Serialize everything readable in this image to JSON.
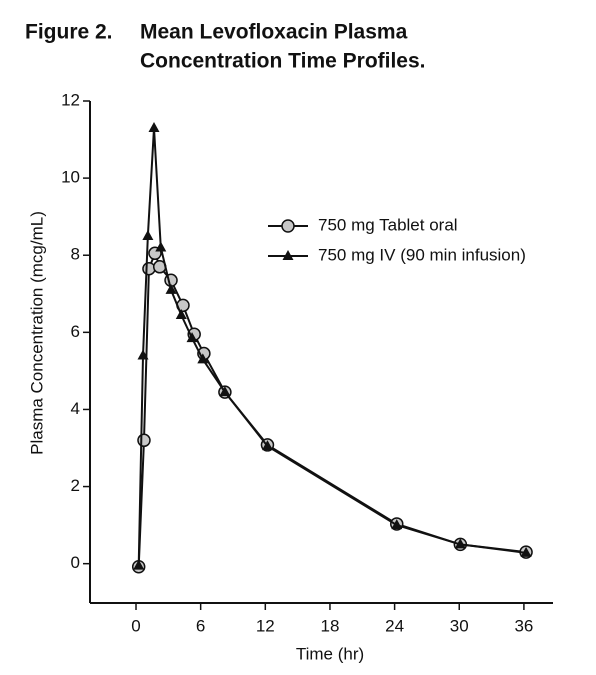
{
  "chart_data": {
    "type": "line",
    "figure_label": "Figure 2.",
    "title_lines": [
      "Mean Levofloxacin Plasma",
      "Concentration Time Profiles."
    ],
    "x_label": "Time (hr)",
    "y_label": "Plasma Concentration (mcg/mL)",
    "xlim": [
      -4.27,
      38.7
    ],
    "ylim": [
      -1.02,
      12
    ],
    "xticks": [
      0,
      6,
      12,
      18,
      24,
      30,
      36
    ],
    "yticks": [
      0,
      2,
      4,
      6,
      8,
      10,
      12
    ],
    "legend": "upper-right",
    "series": [
      {
        "name": "750 mg Tablet oral",
        "color": "#111111",
        "marker": "circle",
        "x": [
          0.25,
          0.74,
          1.2,
          1.76,
          2.2,
          3.25,
          4.36,
          5.4,
          6.3,
          8.25,
          12.2,
          24.2,
          30.1,
          36.2
        ],
        "values": [
          -0.08,
          3.2,
          7.65,
          8.05,
          7.7,
          7.35,
          6.7,
          5.95,
          5.45,
          4.45,
          3.08,
          1.03,
          0.5,
          0.3
        ]
      },
      {
        "name": "750 mg IV (90 min infusion)",
        "color": "#111111",
        "marker": "triangle",
        "x": [
          0.25,
          0.65,
          1.1,
          1.67,
          2.3,
          3.25,
          4.2,
          5.2,
          6.2,
          8.25,
          12.2,
          24.2,
          30.1,
          36.2
        ],
        "values": [
          -0.05,
          5.4,
          8.5,
          11.3,
          8.2,
          7.1,
          6.45,
          5.85,
          5.3,
          4.45,
          3.05,
          1.0,
          0.5,
          0.28
        ]
      }
    ]
  }
}
